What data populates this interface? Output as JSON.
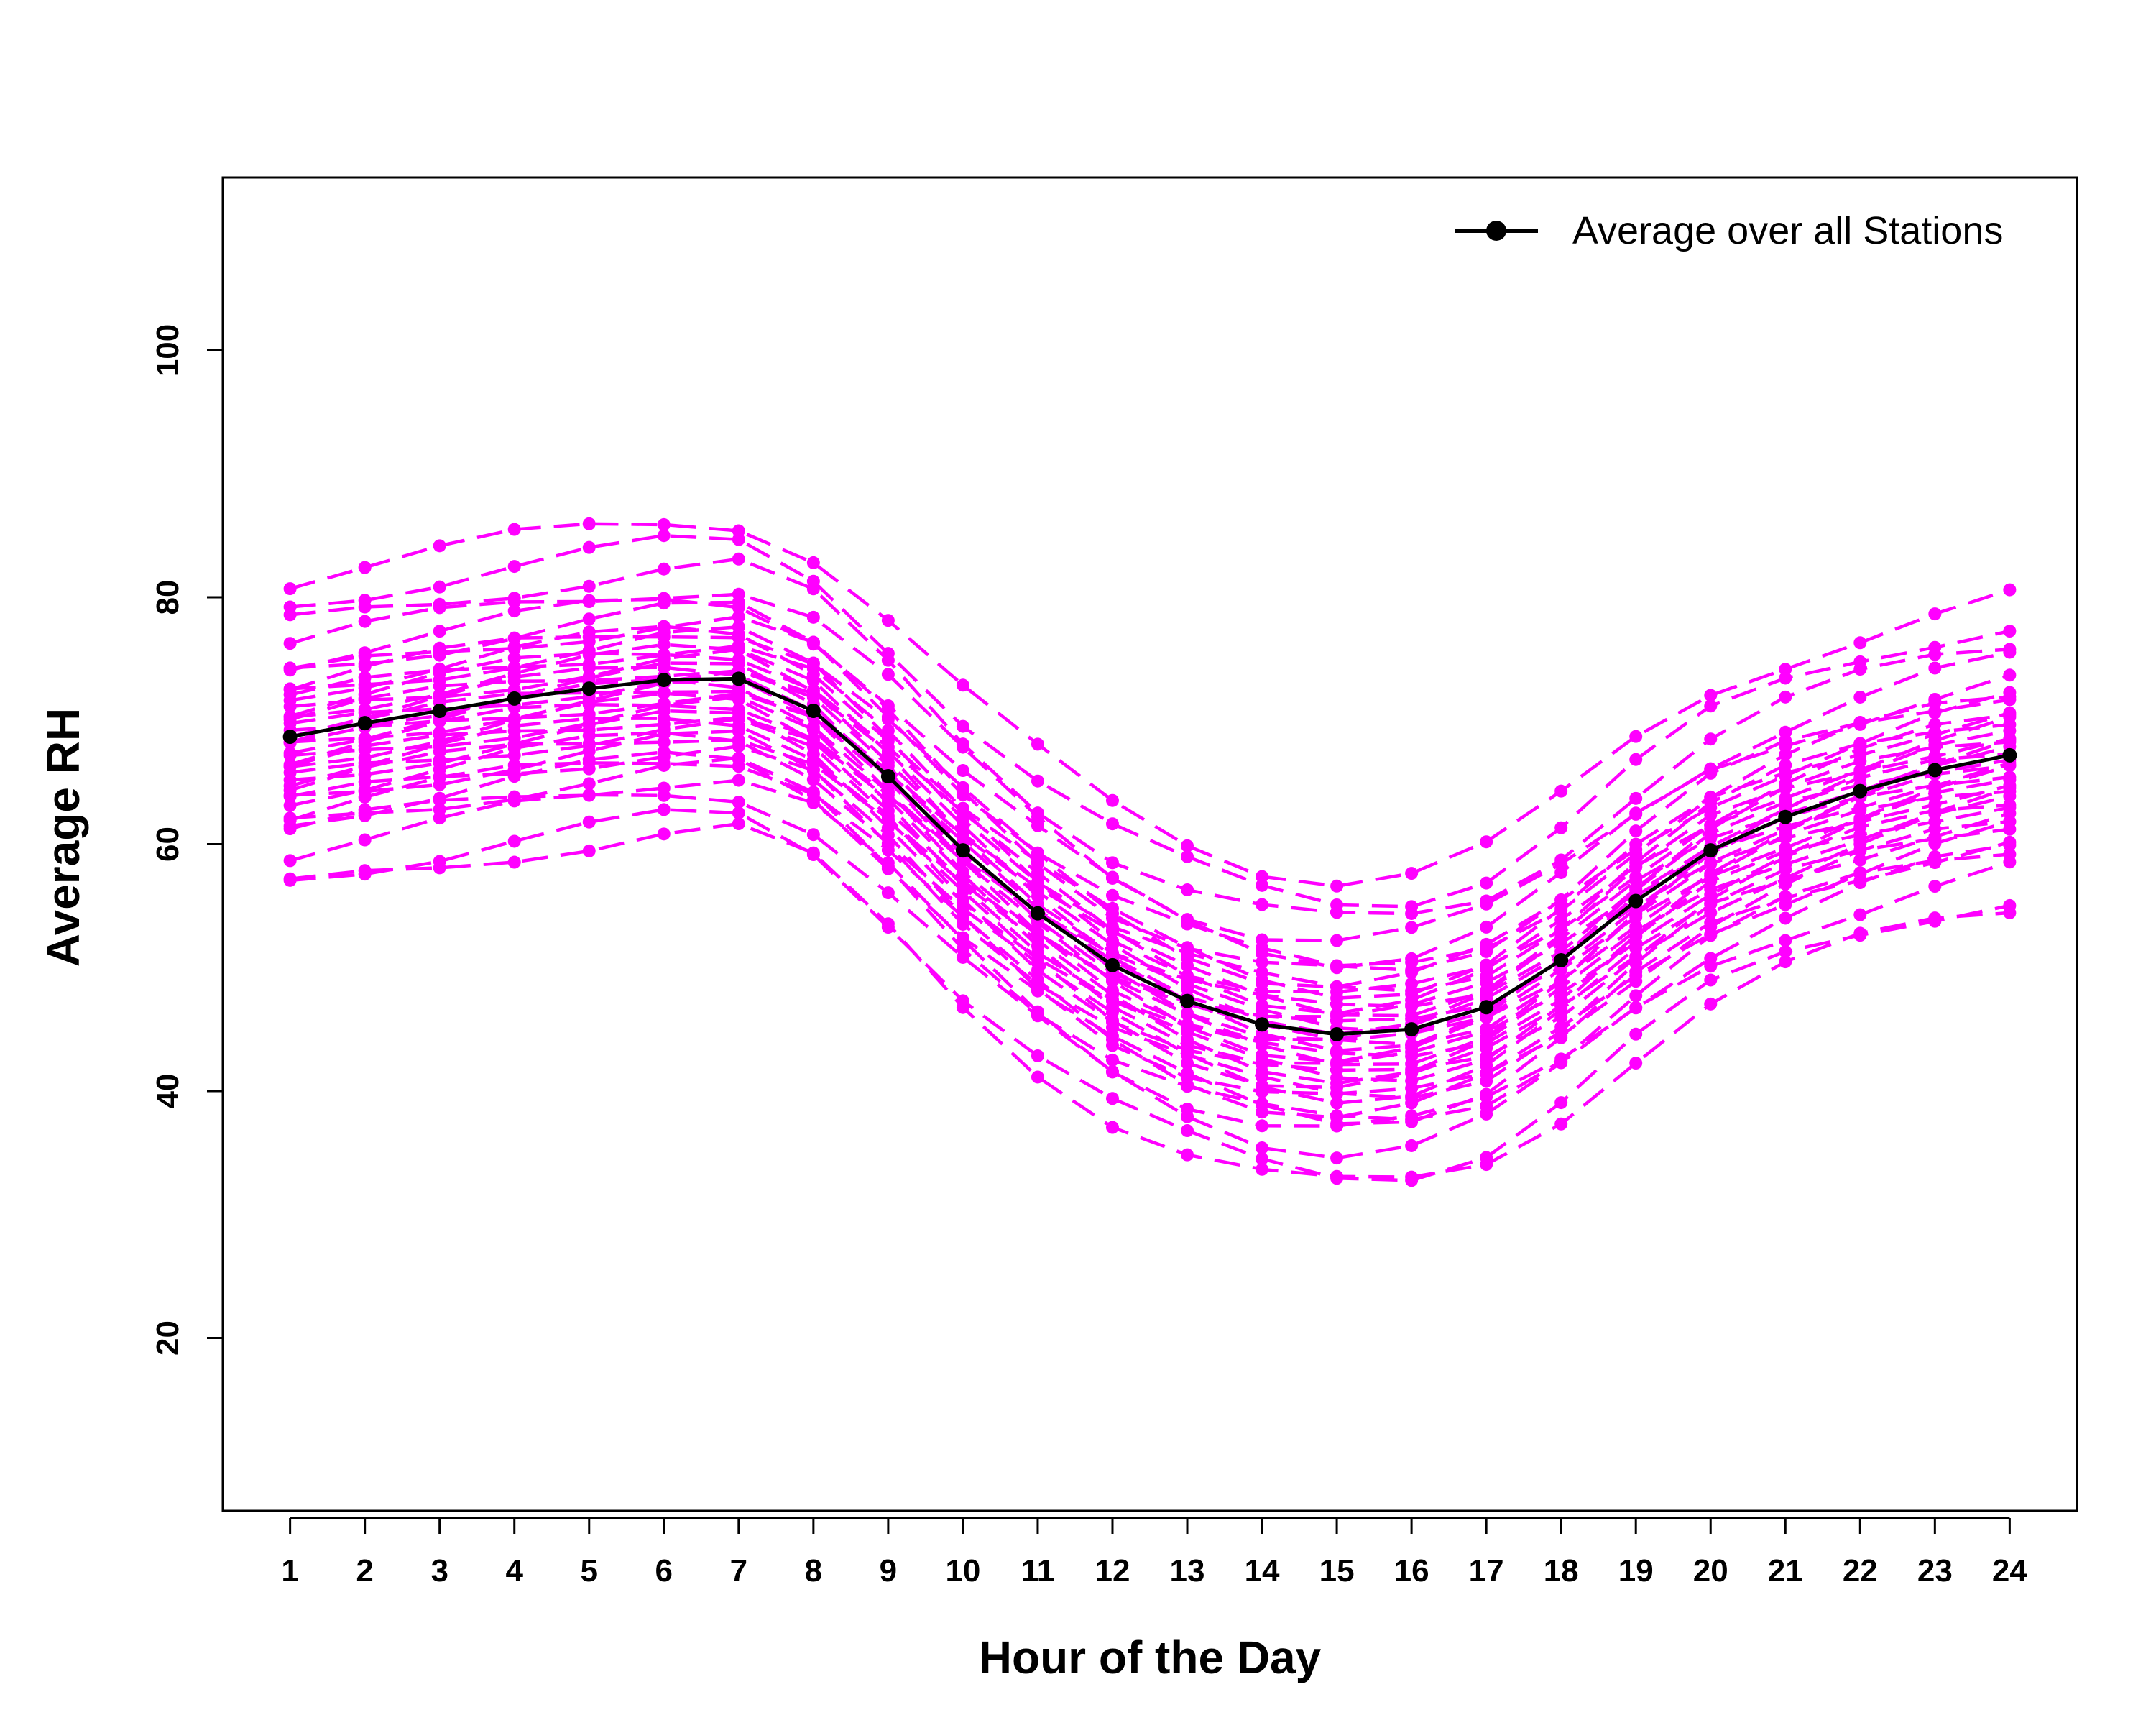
{
  "chart_data": {
    "type": "line",
    "title": "",
    "xlabel": "Hour of the Day",
    "ylabel": "Average RH",
    "x": [
      1,
      2,
      3,
      4,
      5,
      6,
      7,
      8,
      9,
      10,
      11,
      12,
      13,
      14,
      15,
      16,
      17,
      18,
      19,
      20,
      21,
      22,
      23,
      24
    ],
    "x_tick_labels": [
      "1",
      "2",
      "3",
      "4",
      "5",
      "6",
      "7",
      "8",
      "9",
      "10",
      "11",
      "12",
      "13",
      "14",
      "15",
      "16",
      "17",
      "18",
      "19",
      "20",
      "21",
      "22",
      "23",
      "24"
    ],
    "y_ticks": [
      20,
      40,
      60,
      80,
      100
    ],
    "y_tick_labels": [
      "20",
      "40",
      "60",
      "80",
      "100"
    ],
    "xlim": [
      0.1,
      24.9
    ],
    "ylim": [
      6,
      114
    ],
    "grid": false,
    "legend": {
      "position": "top-right",
      "entries": [
        "Average over all Stations"
      ]
    },
    "series": [
      {
        "name": "Average over all Stations",
        "color": "#000000",
        "values": [
          68.7,
          69.8,
          70.8,
          71.8,
          72.6,
          73.3,
          73.4,
          70.8,
          65.5,
          59.5,
          54.4,
          50.2,
          47.3,
          45.4,
          44.6,
          45.0,
          46.8,
          50.6,
          55.4,
          59.5,
          62.2,
          64.3,
          66.0,
          67.2
        ]
      }
    ],
    "station_series": {
      "color": "#ff00ff",
      "style": "dashed",
      "offsets": [
        -12.4,
        -11.4,
        -9.2,
        -7.9,
        -7.3,
        -6.6,
        -6.2,
        -5.6,
        -5.1,
        -4.7,
        -4.2,
        -3.8,
        -3.4,
        -3.1,
        -2.7,
        -2.3,
        -1.9,
        -1.6,
        -1.2,
        -0.9,
        -0.5,
        -0.2,
        0.2,
        0.5,
        0.9,
        1.2,
        1.6,
        2.0,
        2.4,
        2.8,
        3.3,
        3.7,
        4.2,
        4.7,
        5.4,
        6.3,
        7.5,
        9.0,
        10.8,
        12.8
      ]
    }
  }
}
